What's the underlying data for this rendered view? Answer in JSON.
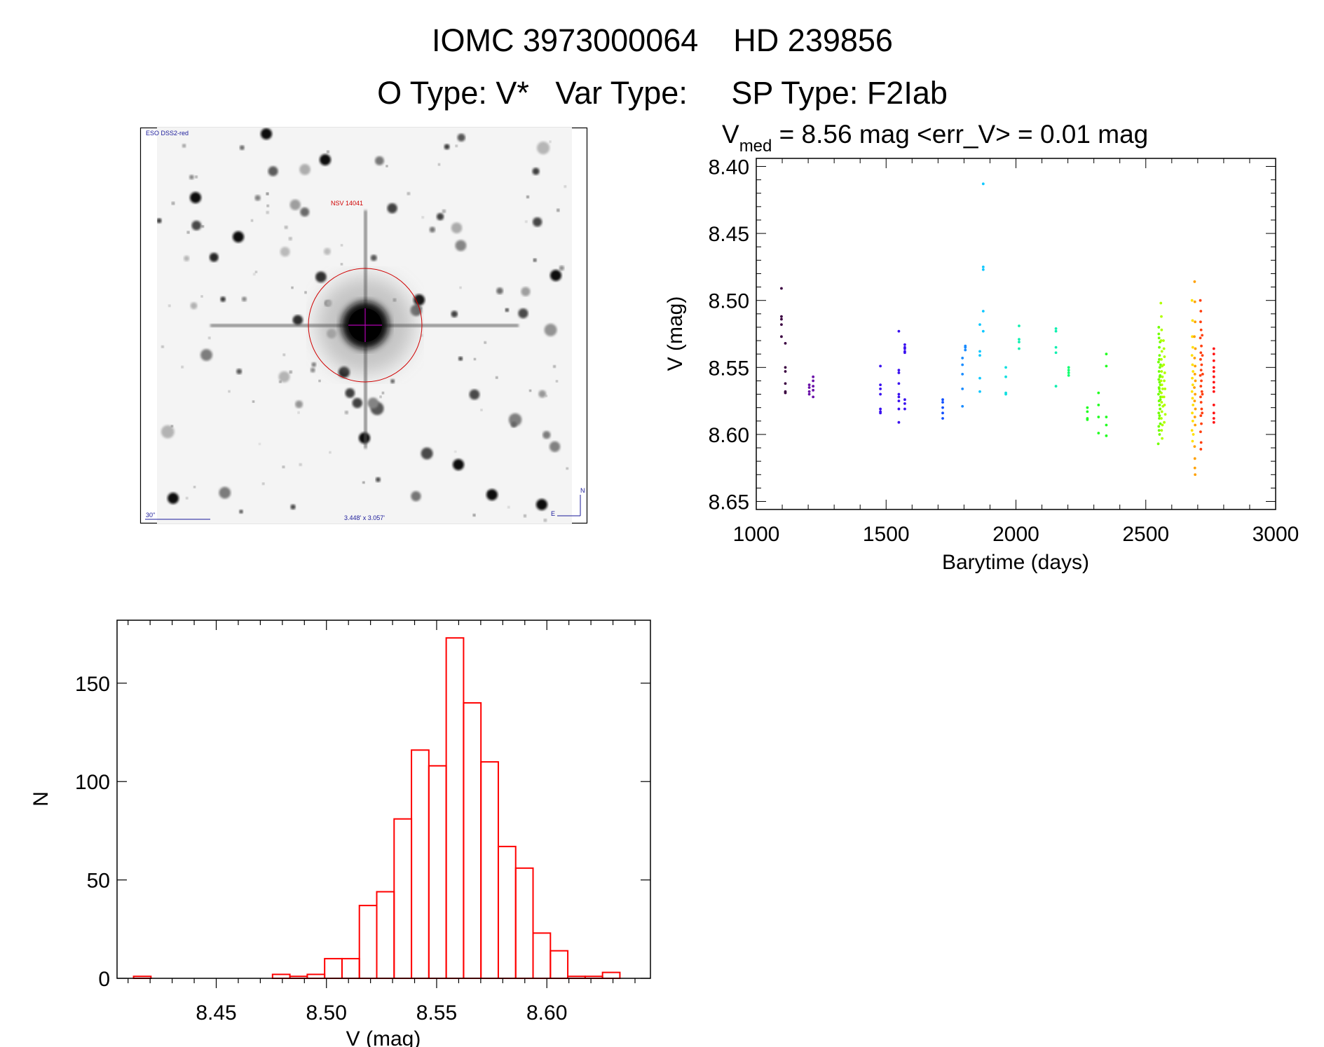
{
  "header": {
    "title": "IOMC 3973000064    HD 239856",
    "subtitle": "O Type: V*   Var Type:     SP Type: F2Iab"
  },
  "finder_chart": {
    "survey": "ESO DSS2-red",
    "target": "NSV 14041",
    "scale_bar": "30\"",
    "field_size": "3.448' x 3.057'",
    "north": "N",
    "east": "E"
  },
  "chart_data": [
    {
      "type": "scatter",
      "title_prefix": "V",
      "title_sub": "med",
      "title_rest": " = 8.56 mag <err_V> = 0.01 mag",
      "xlabel": "Barytime (days)",
      "ylabel": "V (mag)",
      "xlim": [
        1000,
        3000
      ],
      "ylim": [
        8.656,
        8.394
      ],
      "xticks": [
        1000,
        1500,
        2000,
        2500,
        3000
      ],
      "xtick_labels": [
        "1000",
        "1500",
        "2000",
        "2500",
        "3000"
      ],
      "yticks": [
        8.4,
        8.45,
        8.5,
        8.55,
        8.6,
        8.65
      ],
      "ytick_labels": [
        "8.40",
        "8.45",
        "8.50",
        "8.55",
        "8.60",
        "8.65"
      ],
      "series": [
        {
          "color": "#3a0040",
          "points": [
            [
              1097,
              8.491
            ],
            [
              1097,
              8.512
            ],
            [
              1097,
              8.514
            ],
            [
              1097,
              8.518
            ],
            [
              1097,
              8.527
            ],
            [
              1112,
              8.532
            ],
            [
              1112,
              8.55
            ],
            [
              1112,
              8.553
            ],
            [
              1112,
              8.562
            ],
            [
              1112,
              8.568
            ],
            [
              1112,
              8.569
            ]
          ]
        },
        {
          "color": "#6a10a8",
          "points": [
            [
              1204,
              8.563
            ],
            [
              1204,
              8.565
            ],
            [
              1204,
              8.568
            ],
            [
              1204,
              8.57
            ],
            [
              1219,
              8.557
            ],
            [
              1219,
              8.56
            ],
            [
              1219,
              8.564
            ],
            [
              1219,
              8.567
            ],
            [
              1219,
              8.572
            ]
          ]
        },
        {
          "color": "#3a10f0",
          "points": [
            [
              1478,
              8.549
            ],
            [
              1478,
              8.563
            ],
            [
              1478,
              8.566
            ],
            [
              1478,
              8.57
            ],
            [
              1478,
              8.581
            ],
            [
              1478,
              8.583
            ],
            [
              1478,
              8.584
            ],
            [
              1549,
              8.523
            ],
            [
              1549,
              8.552
            ],
            [
              1549,
              8.554
            ],
            [
              1549,
              8.562
            ],
            [
              1549,
              8.57
            ],
            [
              1549,
              8.572
            ],
            [
              1549,
              8.575
            ],
            [
              1549,
              8.581
            ],
            [
              1549,
              8.591
            ],
            [
              1572,
              8.533
            ],
            [
              1572,
              8.535
            ],
            [
              1572,
              8.536
            ],
            [
              1572,
              8.538
            ],
            [
              1572,
              8.539
            ],
            [
              1572,
              8.574
            ],
            [
              1572,
              8.577
            ],
            [
              1572,
              8.581
            ]
          ]
        },
        {
          "color": "#1050ff",
          "points": [
            [
              1718,
              8.574
            ],
            [
              1718,
              8.576
            ],
            [
              1718,
              8.58
            ],
            [
              1718,
              8.584
            ],
            [
              1718,
              8.588
            ]
          ]
        },
        {
          "color": "#1a8cff",
          "points": [
            [
              1794,
              8.543
            ],
            [
              1794,
              8.548
            ],
            [
              1794,
              8.555
            ],
            [
              1794,
              8.566
            ],
            [
              1794,
              8.579
            ],
            [
              1805,
              8.534
            ],
            [
              1805,
              8.535
            ],
            [
              1805,
              8.537
            ]
          ]
        },
        {
          "color": "#10c8ff",
          "points": [
            [
              1861,
              8.518
            ],
            [
              1861,
              8.538
            ],
            [
              1861,
              8.541
            ],
            [
              1861,
              8.558
            ],
            [
              1861,
              8.568
            ],
            [
              1874,
              8.413
            ],
            [
              1874,
              8.475
            ],
            [
              1874,
              8.477
            ],
            [
              1874,
              8.508
            ],
            [
              1874,
              8.523
            ]
          ]
        },
        {
          "color": "#10e0e0",
          "points": [
            [
              1961,
              8.55
            ],
            [
              1961,
              8.557
            ],
            [
              1961,
              8.569
            ],
            [
              1961,
              8.57
            ]
          ]
        },
        {
          "color": "#10f0b0",
          "points": [
            [
              2012,
              8.519
            ],
            [
              2012,
              8.529
            ],
            [
              2012,
              8.531
            ],
            [
              2012,
              8.536
            ],
            [
              2154,
              8.521
            ],
            [
              2154,
              8.523
            ],
            [
              2154,
              8.535
            ],
            [
              2154,
              8.539
            ],
            [
              2154,
              8.564
            ]
          ]
        },
        {
          "color": "#10ff70",
          "points": [
            [
              2203,
              8.55
            ],
            [
              2203,
              8.552
            ],
            [
              2203,
              8.554
            ],
            [
              2203,
              8.556
            ]
          ]
        },
        {
          "color": "#20ff20",
          "points": [
            [
              2275,
              8.58
            ],
            [
              2275,
              8.583
            ],
            [
              2275,
              8.588
            ],
            [
              2275,
              8.589
            ],
            [
              2318,
              8.569
            ],
            [
              2318,
              8.578
            ],
            [
              2318,
              8.587
            ],
            [
              2318,
              8.599
            ],
            [
              2348,
              8.54
            ],
            [
              2348,
              8.549
            ],
            [
              2348,
              8.587
            ],
            [
              2348,
              8.593
            ],
            [
              2348,
              8.601
            ]
          ]
        },
        {
          "color": "#70ff00",
          "points": [
            [
              2548,
              8.607
            ],
            [
              2550,
              8.52
            ],
            [
              2551,
              8.528
            ],
            [
              2552,
              8.535
            ],
            [
              2553,
              8.541
            ],
            [
              2549,
              8.546
            ],
            [
              2554,
              8.55
            ],
            [
              2551,
              8.553
            ],
            [
              2555,
              8.556
            ],
            [
              2550,
              8.559
            ],
            [
              2553,
              8.561
            ],
            [
              2556,
              8.563
            ],
            [
              2552,
              8.566
            ],
            [
              2554,
              8.568
            ],
            [
              2549,
              8.57
            ],
            [
              2557,
              8.572
            ],
            [
              2551,
              8.575
            ],
            [
              2553,
              8.578
            ],
            [
              2555,
              8.581
            ],
            [
              2550,
              8.584
            ],
            [
              2552,
              8.588
            ],
            [
              2556,
              8.592
            ],
            [
              2551,
              8.597
            ],
            [
              2553,
              8.6
            ],
            [
              2550,
              8.525
            ],
            [
              2555,
              8.531
            ],
            [
              2552,
              8.544
            ],
            [
              2557,
              8.548
            ],
            [
              2554,
              8.557
            ],
            [
              2551,
              8.565
            ],
            [
              2556,
              8.574
            ],
            [
              2553,
              8.586
            ],
            [
              2550,
              8.594
            ]
          ]
        },
        {
          "color": "#b0ff00",
          "points": [
            [
              2558,
              8.502
            ],
            [
              2560,
              8.512
            ],
            [
              2561,
              8.522
            ],
            [
              2559,
              8.53
            ],
            [
              2562,
              8.538
            ],
            [
              2560,
              8.544
            ],
            [
              2563,
              8.549
            ],
            [
              2561,
              8.553
            ],
            [
              2564,
              8.557
            ],
            [
              2559,
              8.56
            ],
            [
              2562,
              8.563
            ],
            [
              2565,
              8.566
            ],
            [
              2560,
              8.569
            ],
            [
              2563,
              8.572
            ],
            [
              2561,
              8.576
            ],
            [
              2566,
              8.579
            ],
            [
              2562,
              8.583
            ],
            [
              2560,
              8.588
            ],
            [
              2564,
              8.593
            ],
            [
              2561,
              8.597
            ],
            [
              2563,
              8.603
            ],
            [
              2568,
              8.53
            ],
            [
              2570,
              8.536
            ],
            [
              2572,
              8.542
            ],
            [
              2569,
              8.548
            ],
            [
              2573,
              8.554
            ],
            [
              2571,
              8.56
            ],
            [
              2574,
              8.566
            ],
            [
              2570,
              8.572
            ],
            [
              2572,
              8.578
            ],
            [
              2575,
              8.585
            ],
            [
              2571,
              8.591
            ]
          ]
        },
        {
          "color": "#ffe000",
          "points": [
            [
              2678,
              8.5
            ],
            [
              2680,
              8.515
            ],
            [
              2679,
              8.527
            ],
            [
              2681,
              8.535
            ],
            [
              2678,
              8.541
            ],
            [
              2680,
              8.548
            ],
            [
              2682,
              8.553
            ],
            [
              2679,
              8.558
            ],
            [
              2681,
              8.563
            ],
            [
              2678,
              8.568
            ],
            [
              2680,
              8.573
            ],
            [
              2682,
              8.578
            ],
            [
              2679,
              8.584
            ],
            [
              2681,
              8.59
            ],
            [
              2678,
              8.597
            ],
            [
              2680,
              8.605
            ],
            [
              2683,
              8.6
            ]
          ]
        },
        {
          "color": "#ffa000",
          "points": [
            [
              2688,
              8.486
            ],
            [
              2689,
              8.501
            ],
            [
              2690,
              8.516
            ],
            [
              2687,
              8.527
            ],
            [
              2691,
              8.536
            ],
            [
              2688,
              8.543
            ],
            [
              2690,
              8.549
            ],
            [
              2689,
              8.555
            ],
            [
              2691,
              8.56
            ],
            [
              2687,
              8.565
            ],
            [
              2690,
              8.57
            ],
            [
              2688,
              8.575
            ],
            [
              2691,
              8.581
            ],
            [
              2689,
              8.587
            ],
            [
              2690,
              8.593
            ],
            [
              2688,
              8.609
            ],
            [
              2689,
              8.618
            ],
            [
              2689,
              8.625
            ],
            [
              2690,
              8.63
            ]
          ]
        },
        {
          "color": "#ff4010",
          "points": [
            [
              2710,
              8.5
            ],
            [
              2712,
              8.508
            ],
            [
              2711,
              8.516
            ],
            [
              2713,
              8.522
            ],
            [
              2710,
              8.528
            ],
            [
              2714,
              8.534
            ],
            [
              2712,
              8.539
            ],
            [
              2711,
              8.544
            ],
            [
              2715,
              8.548
            ],
            [
              2713,
              8.552
            ],
            [
              2710,
              8.556
            ],
            [
              2714,
              8.56
            ],
            [
              2712,
              8.564
            ],
            [
              2716,
              8.568
            ],
            [
              2711,
              8.572
            ],
            [
              2713,
              8.576
            ],
            [
              2715,
              8.581
            ],
            [
              2712,
              8.586
            ],
            [
              2714,
              8.592
            ],
            [
              2711,
              8.598
            ],
            [
              2713,
              8.606
            ],
            [
              2712,
              8.611
            ],
            [
              2717,
              8.526
            ],
            [
              2718,
              8.541
            ],
            [
              2719,
              8.555
            ],
            [
              2718,
              8.57
            ],
            [
              2717,
              8.584
            ]
          ]
        },
        {
          "color": "#ff1010",
          "points": [
            [
              2762,
              8.536
            ],
            [
              2762,
              8.54
            ],
            [
              2762,
              8.545
            ],
            [
              2762,
              8.55
            ],
            [
              2762,
              8.553
            ],
            [
              2762,
              8.557
            ],
            [
              2762,
              8.561
            ],
            [
              2762,
              8.565
            ],
            [
              2762,
              8.568
            ],
            [
              2762,
              8.578
            ],
            [
              2762,
              8.584
            ],
            [
              2762,
              8.588
            ],
            [
              2762,
              8.591
            ]
          ]
        }
      ]
    },
    {
      "type": "bar",
      "xlabel": "V (mag)",
      "ylabel": "N",
      "bin_start": 8.4125,
      "bin_width": 0.00788,
      "values": [
        1,
        0,
        0,
        0,
        0,
        0,
        0,
        0,
        2,
        1,
        2,
        10,
        10,
        37,
        44,
        81,
        116,
        108,
        173,
        140,
        110,
        67,
        56,
        23,
        14,
        1,
        1,
        3
      ],
      "xlim": [
        8.405,
        8.647
      ],
      "ylim": [
        0,
        182
      ],
      "xticks": [
        8.45,
        8.5,
        8.55,
        8.6
      ],
      "xtick_labels": [
        "8.45",
        "8.50",
        "8.55",
        "8.60"
      ],
      "yticks": [
        0,
        50,
        100,
        150
      ],
      "ytick_labels": [
        "0",
        "50",
        "100",
        "150"
      ],
      "bar_color": "#ff0000"
    }
  ]
}
